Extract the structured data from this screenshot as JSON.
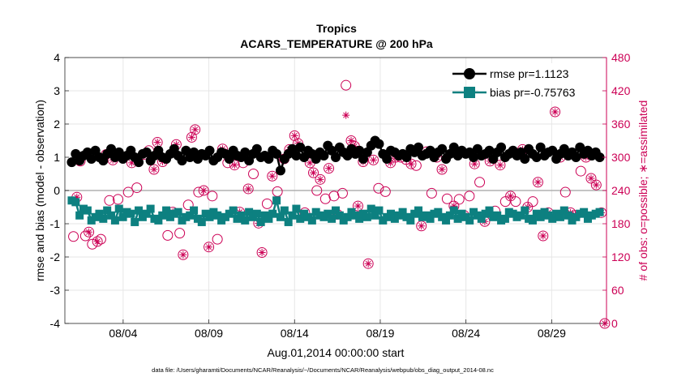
{
  "chart_data": {
    "type": "line",
    "title": "Tropics",
    "subtitle": "ACARS_TEMPERATURE @ 200 hPa",
    "xlabel": "Aug.01,2014 00:00:00 start",
    "ylabel_left": "rmse and bias (model - observation)",
    "ylabel_right": "# of obs: o=possible; ∗=assimilated",
    "footer": "data file: /Users/gharamti/Documents/NCAR/Reanalysis/~/Documents/NCAR/Reanalysis/webpub/obs_diag_output_2014-08.nc",
    "xlim": [
      0.6,
      32.2
    ],
    "ylim_left": [
      -4,
      4
    ],
    "ylim_right": [
      0,
      480
    ],
    "x_ticks": [
      4,
      9,
      14,
      19,
      24,
      29
    ],
    "x_tick_labels": [
      "08/04",
      "08/09",
      "08/14",
      "08/19",
      "08/24",
      "08/29"
    ],
    "y_ticks_left": [
      -4,
      -3,
      -2,
      -1,
      0,
      1,
      2,
      3,
      4
    ],
    "y_ticks_right": [
      0,
      60,
      120,
      180,
      240,
      300,
      360,
      420,
      480
    ],
    "grid": true,
    "legend_location": "top-right",
    "colors": {
      "rmse": "#000000",
      "bias": "#0d8080",
      "obs": "#cc0055",
      "zero_line": "#b0b0b0",
      "grid": "#e6e6e6"
    },
    "series": [
      {
        "name": "rmse pr=1.1123",
        "values": [
          0.85,
          1.1,
          0.9,
          1.05,
          1.15,
          0.95,
          1.2,
          1.0,
          0.9,
          1.1,
          1.25,
          1.0,
          1.15,
          0.95,
          1.05,
          1.2,
          1.0,
          0.85,
          1.1,
          1.15,
          0.9,
          1.05,
          1.2,
          1.0,
          0.95,
          1.1,
          1.25,
          1.05,
          0.9,
          1.2,
          1.0,
          1.15,
          0.95,
          1.1,
          1.05,
          1.2,
          0.9,
          1.0,
          1.15,
          1.1,
          0.95,
          1.2,
          1.05,
          1.0,
          1.15,
          0.9,
          1.1,
          1.25,
          1.0,
          1.05,
          0.95,
          1.2,
          1.1,
          0.6,
          0.95,
          1.1,
          1.25,
          1.05,
          1.3,
          1.0,
          1.2,
          1.1,
          0.95,
          1.15,
          1.05,
          1.35,
          1.2,
          1.0,
          1.3,
          1.15,
          1.05,
          1.25,
          1.1,
          1.2,
          0.95,
          1.15,
          1.35,
          1.5,
          1.4,
          1.1,
          0.95,
          1.2,
          1.15,
          1.05,
          1.1,
          1.0,
          1.25,
          1.15,
          1.3,
          1.05,
          1.1,
          1.2,
          1.0,
          1.15,
          1.25,
          0.95,
          1.1,
          1.3,
          1.05,
          1.2,
          1.1,
          1.15,
          1.0,
          1.25,
          1.05,
          1.1,
          1.2,
          0.95,
          1.15,
          1.3,
          1.0,
          1.1,
          1.2,
          1.05,
          1.15,
          0.95,
          1.25,
          1.1,
          1.0,
          1.3,
          1.05,
          1.15,
          1.2,
          0.95,
          1.1,
          1.25,
          1.05,
          1.15,
          1.0,
          1.3,
          1.1,
          1.2,
          1.05,
          1.15,
          1.0
        ]
      },
      {
        "name": "bias pr=-0.75763",
        "values": [
          -0.3,
          -0.35,
          -0.75,
          -0.55,
          -0.6,
          -0.9,
          -0.8,
          -0.7,
          -0.85,
          -0.6,
          -0.75,
          -0.9,
          -0.55,
          -0.8,
          -0.65,
          -0.7,
          -0.95,
          -0.6,
          -0.8,
          -0.7,
          -0.55,
          -0.85,
          -0.9,
          -0.75,
          -0.6,
          -0.8,
          -0.7,
          -0.65,
          -0.9,
          -0.8,
          -0.75,
          -0.6,
          -0.85,
          -0.95,
          -0.7,
          -0.8,
          -0.65,
          -0.75,
          -0.9,
          -0.8,
          -0.7,
          -0.6,
          -0.85,
          -0.75,
          -0.9,
          -0.65,
          -0.8,
          -0.7,
          -0.95,
          -0.75,
          -0.85,
          -0.7,
          -0.3,
          -0.8,
          -0.6,
          -0.95,
          -0.75,
          -0.55,
          -0.85,
          -0.7,
          -0.8,
          -0.9,
          -0.65,
          -0.75,
          -0.8,
          -0.7,
          -0.85,
          -0.6,
          -0.75,
          -0.9,
          -0.8,
          -0.65,
          -0.75,
          -0.85,
          -0.7,
          -0.8,
          -0.55,
          -0.75,
          -0.6,
          -0.9,
          -0.8,
          -0.7,
          -0.85,
          -0.75,
          -0.65,
          -0.8,
          -0.9,
          -0.7,
          -0.6,
          -0.8,
          -0.75,
          -0.85,
          -0.7,
          -0.65,
          -0.8,
          -0.9,
          -0.75,
          -0.6,
          -0.85,
          -0.7,
          -0.8,
          -0.9,
          -0.65,
          -0.75,
          -0.85,
          -0.7,
          -0.6,
          -0.8,
          -0.75,
          -0.9,
          -0.85,
          -0.65,
          -0.7,
          -0.8,
          -0.75,
          -0.6,
          -0.85,
          -0.9,
          -0.7,
          -0.8,
          -0.65,
          -0.75,
          -0.85,
          -0.7,
          -0.8,
          -0.6,
          -0.75,
          -0.9,
          -0.8,
          -0.7,
          -0.65,
          -0.85,
          -0.75,
          -0.7,
          -0.65
        ]
      }
    ],
    "obs_possible": [
      {
        "x": 1.1,
        "n": 157
      },
      {
        "x": 1.3,
        "n": 228
      },
      {
        "x": 1.5,
        "n": 293
      },
      {
        "x": 1.8,
        "n": 158
      },
      {
        "x": 2.0,
        "n": 165
      },
      {
        "x": 2.2,
        "n": 143
      },
      {
        "x": 2.5,
        "n": 148
      },
      {
        "x": 2.7,
        "n": 152
      },
      {
        "x": 3.0,
        "n": 305
      },
      {
        "x": 3.2,
        "n": 222
      },
      {
        "x": 3.4,
        "n": 295
      },
      {
        "x": 3.7,
        "n": 224
      },
      {
        "x": 4.0,
        "n": 300
      },
      {
        "x": 4.3,
        "n": 237
      },
      {
        "x": 4.5,
        "n": 290
      },
      {
        "x": 4.8,
        "n": 245
      },
      {
        "x": 5.2,
        "n": 305
      },
      {
        "x": 5.5,
        "n": 312
      },
      {
        "x": 5.8,
        "n": 278
      },
      {
        "x": 6.0,
        "n": 327
      },
      {
        "x": 6.3,
        "n": 292
      },
      {
        "x": 6.6,
        "n": 159
      },
      {
        "x": 6.9,
        "n": 201
      },
      {
        "x": 7.1,
        "n": 323
      },
      {
        "x": 7.3,
        "n": 163
      },
      {
        "x": 7.5,
        "n": 124
      },
      {
        "x": 7.8,
        "n": 214
      },
      {
        "x": 8.0,
        "n": 336
      },
      {
        "x": 8.2,
        "n": 350
      },
      {
        "x": 8.4,
        "n": 237
      },
      {
        "x": 8.7,
        "n": 240
      },
      {
        "x": 9.0,
        "n": 138
      },
      {
        "x": 9.2,
        "n": 230
      },
      {
        "x": 9.5,
        "n": 152
      },
      {
        "x": 9.8,
        "n": 315
      },
      {
        "x": 10.1,
        "n": 290
      },
      {
        "x": 10.5,
        "n": 286
      },
      {
        "x": 10.8,
        "n": 201
      },
      {
        "x": 11.0,
        "n": 290
      },
      {
        "x": 11.3,
        "n": 243
      },
      {
        "x": 11.6,
        "n": 270
      },
      {
        "x": 11.9,
        "n": 181
      },
      {
        "x": 12.1,
        "n": 128
      },
      {
        "x": 12.4,
        "n": 216
      },
      {
        "x": 12.7,
        "n": 266
      },
      {
        "x": 13.0,
        "n": 238
      },
      {
        "x": 13.4,
        "n": 297
      },
      {
        "x": 13.7,
        "n": 314
      },
      {
        "x": 14.0,
        "n": 339
      },
      {
        "x": 14.2,
        "n": 325
      },
      {
        "x": 14.6,
        "n": 200
      },
      {
        "x": 14.9,
        "n": 290
      },
      {
        "x": 15.1,
        "n": 272
      },
      {
        "x": 15.3,
        "n": 240
      },
      {
        "x": 15.5,
        "n": 260
      },
      {
        "x": 15.8,
        "n": 225
      },
      {
        "x": 16.0,
        "n": 280
      },
      {
        "x": 16.3,
        "n": 230
      },
      {
        "x": 16.5,
        "n": 197
      },
      {
        "x": 16.8,
        "n": 235
      },
      {
        "x": 17.0,
        "n": 430
      },
      {
        "x": 17.3,
        "n": 330
      },
      {
        "x": 17.5,
        "n": 320
      },
      {
        "x": 17.7,
        "n": 212
      },
      {
        "x": 18.0,
        "n": 292
      },
      {
        "x": 18.3,
        "n": 108
      },
      {
        "x": 18.6,
        "n": 295
      },
      {
        "x": 18.9,
        "n": 244
      },
      {
        "x": 19.3,
        "n": 238
      },
      {
        "x": 19.6,
        "n": 290
      },
      {
        "x": 19.9,
        "n": 300
      },
      {
        "x": 20.2,
        "n": 300
      },
      {
        "x": 20.5,
        "n": 296
      },
      {
        "x": 20.8,
        "n": 288
      },
      {
        "x": 21.1,
        "n": 285
      },
      {
        "x": 21.4,
        "n": 176
      },
      {
        "x": 21.7,
        "n": 310
      },
      {
        "x": 22.0,
        "n": 235
      },
      {
        "x": 22.3,
        "n": 300
      },
      {
        "x": 22.6,
        "n": 278
      },
      {
        "x": 22.9,
        "n": 225
      },
      {
        "x": 23.3,
        "n": 212
      },
      {
        "x": 23.6,
        "n": 224
      },
      {
        "x": 23.9,
        "n": 195
      },
      {
        "x": 24.2,
        "n": 230
      },
      {
        "x": 24.5,
        "n": 288
      },
      {
        "x": 24.8,
        "n": 255
      },
      {
        "x": 25.1,
        "n": 184
      },
      {
        "x": 25.4,
        "n": 293
      },
      {
        "x": 25.7,
        "n": 203
      },
      {
        "x": 26.0,
        "n": 286
      },
      {
        "x": 26.3,
        "n": 220
      },
      {
        "x": 26.6,
        "n": 230
      },
      {
        "x": 26.9,
        "n": 220
      },
      {
        "x": 27.3,
        "n": 314
      },
      {
        "x": 27.6,
        "n": 210
      },
      {
        "x": 27.9,
        "n": 220
      },
      {
        "x": 28.2,
        "n": 255
      },
      {
        "x": 28.5,
        "n": 158
      },
      {
        "x": 28.8,
        "n": 200
      },
      {
        "x": 29.2,
        "n": 382
      },
      {
        "x": 29.5,
        "n": 300
      },
      {
        "x": 29.8,
        "n": 237
      },
      {
        "x": 30.1,
        "n": 200
      },
      {
        "x": 30.4,
        "n": 195
      },
      {
        "x": 30.7,
        "n": 275
      },
      {
        "x": 31.0,
        "n": 300
      },
      {
        "x": 31.3,
        "n": 262
      },
      {
        "x": 31.6,
        "n": 250
      },
      {
        "x": 31.9,
        "n": 200
      },
      {
        "x": 32.1,
        "n": 0
      }
    ],
    "obs_assimilated": [
      {
        "x": 1.3,
        "n": 228
      },
      {
        "x": 1.5,
        "n": 293
      },
      {
        "x": 2.0,
        "n": 165
      },
      {
        "x": 2.5,
        "n": 148
      },
      {
        "x": 3.0,
        "n": 305
      },
      {
        "x": 3.4,
        "n": 295
      },
      {
        "x": 4.0,
        "n": 300
      },
      {
        "x": 4.5,
        "n": 290
      },
      {
        "x": 5.2,
        "n": 305
      },
      {
        "x": 5.8,
        "n": 278
      },
      {
        "x": 6.0,
        "n": 327
      },
      {
        "x": 6.3,
        "n": 292
      },
      {
        "x": 6.9,
        "n": 201
      },
      {
        "x": 7.1,
        "n": 323
      },
      {
        "x": 7.5,
        "n": 124
      },
      {
        "x": 8.0,
        "n": 336
      },
      {
        "x": 8.2,
        "n": 350
      },
      {
        "x": 8.7,
        "n": 240
      },
      {
        "x": 9.0,
        "n": 138
      },
      {
        "x": 9.8,
        "n": 315
      },
      {
        "x": 10.5,
        "n": 286
      },
      {
        "x": 10.8,
        "n": 201
      },
      {
        "x": 11.3,
        "n": 243
      },
      {
        "x": 11.9,
        "n": 181
      },
      {
        "x": 12.1,
        "n": 128
      },
      {
        "x": 12.7,
        "n": 266
      },
      {
        "x": 13.4,
        "n": 297
      },
      {
        "x": 13.7,
        "n": 314
      },
      {
        "x": 14.0,
        "n": 339
      },
      {
        "x": 14.2,
        "n": 325
      },
      {
        "x": 14.9,
        "n": 290
      },
      {
        "x": 15.1,
        "n": 272
      },
      {
        "x": 15.5,
        "n": 260
      },
      {
        "x": 16.0,
        "n": 280
      },
      {
        "x": 16.5,
        "n": 197
      },
      {
        "x": 17.0,
        "n": 376
      },
      {
        "x": 17.3,
        "n": 330
      },
      {
        "x": 17.5,
        "n": 320
      },
      {
        "x": 17.7,
        "n": 212
      },
      {
        "x": 18.0,
        "n": 292
      },
      {
        "x": 18.3,
        "n": 108
      },
      {
        "x": 18.6,
        "n": 295
      },
      {
        "x": 19.6,
        "n": 290
      },
      {
        "x": 19.9,
        "n": 300
      },
      {
        "x": 20.2,
        "n": 300
      },
      {
        "x": 20.8,
        "n": 288
      },
      {
        "x": 21.4,
        "n": 176
      },
      {
        "x": 21.7,
        "n": 310
      },
      {
        "x": 22.3,
        "n": 300
      },
      {
        "x": 22.6,
        "n": 278
      },
      {
        "x": 23.3,
        "n": 212
      },
      {
        "x": 23.9,
        "n": 195
      },
      {
        "x": 24.5,
        "n": 288
      },
      {
        "x": 25.1,
        "n": 184
      },
      {
        "x": 25.4,
        "n": 293
      },
      {
        "x": 26.0,
        "n": 286
      },
      {
        "x": 26.6,
        "n": 230
      },
      {
        "x": 27.3,
        "n": 314
      },
      {
        "x": 27.6,
        "n": 210
      },
      {
        "x": 28.2,
        "n": 255
      },
      {
        "x": 28.5,
        "n": 158
      },
      {
        "x": 28.8,
        "n": 200
      },
      {
        "x": 29.2,
        "n": 382
      },
      {
        "x": 29.5,
        "n": 300
      },
      {
        "x": 30.1,
        "n": 200
      },
      {
        "x": 30.4,
        "n": 195
      },
      {
        "x": 31.0,
        "n": 300
      },
      {
        "x": 31.3,
        "n": 262
      },
      {
        "x": 31.6,
        "n": 250
      },
      {
        "x": 31.9,
        "n": 200
      },
      {
        "x": 32.1,
        "n": 0
      }
    ]
  }
}
